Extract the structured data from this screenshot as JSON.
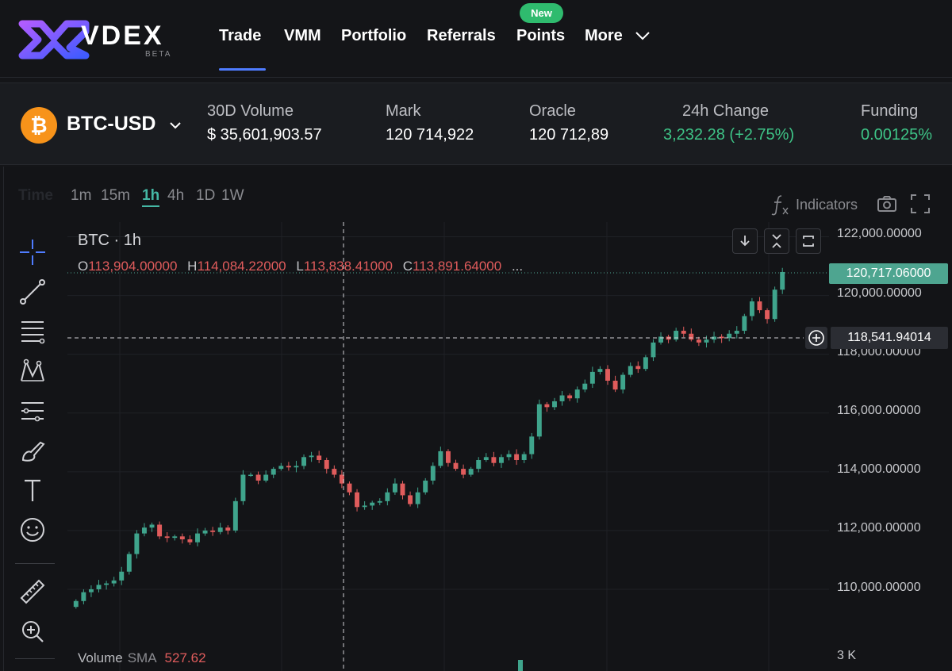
{
  "nav": {
    "brand": "VDEX",
    "brand_sub": "BETA",
    "items": [
      "Trade",
      "VMM",
      "Portfolio",
      "Referrals",
      "Points",
      "More"
    ],
    "active": "Trade",
    "badge": "New",
    "colors": {
      "accent": "#4f7cff",
      "badge": "#2fbb6e"
    }
  },
  "market": {
    "pair": "BTC-USD",
    "stats": [
      {
        "label": "30D Volume",
        "value": "$ 35,601,903.57"
      },
      {
        "label": "Mark",
        "value": "120 714,922"
      },
      {
        "label": "Oracle",
        "value": "120 712,89"
      },
      {
        "label": "24h Change",
        "value": "3,232.28 (+2.75%)"
      },
      {
        "label": "Funding",
        "value": "0.00125%"
      }
    ],
    "colors": {
      "positive": "#3ec487",
      "btc": "#f7931a"
    }
  },
  "chart": {
    "timeframes": [
      "Time",
      "1m",
      "15m",
      "1h",
      "4h",
      "1D",
      "1W"
    ],
    "active_timeframe": "1h",
    "indicators_label": "Indicators",
    "symbol": "BTC · 1h",
    "ohlc": {
      "o_label": "O",
      "o": "113,904.00000",
      "h_label": "H",
      "h": "114,084.22000",
      "l_label": "L",
      "l": "113,838.41000",
      "c_label": "C",
      "c": "113,891.64000",
      "more": "..."
    },
    "volume": {
      "label": "Volume",
      "sma_label": "SMA",
      "sma": "527.62"
    },
    "price_axis": [
      "122,000.00000",
      "120,000.00000",
      "118,000.00000",
      "116,000.00000",
      "114,000.00000",
      "112,000.00000",
      "110,000.00000"
    ],
    "last_price": "120,717.06000",
    "crosshair_price": "118,541.94014",
    "volume_axis": "3 K",
    "tools": [
      "crosshair-icon",
      "trend-line-icon",
      "fib-icon",
      "pattern-icon",
      "forecast-icon",
      "brush-icon",
      "text-icon",
      "emoji-icon",
      "ruler-icon",
      "zoom-in-icon"
    ],
    "colors": {
      "up": "#3fa48c",
      "down": "#e05c5c"
    }
  },
  "chart_data": {
    "type": "candlestick",
    "title": "BTC · 1h",
    "ylim": [
      109000,
      122500
    ],
    "y_ticks": [
      110000,
      112000,
      114000,
      116000,
      118000,
      120000,
      122000
    ],
    "grid": true,
    "close_path": [
      109600,
      109900,
      110000,
      110150,
      110200,
      110300,
      110600,
      111200,
      111900,
      112100,
      112200,
      111800,
      111750,
      111800,
      111700,
      111600,
      111900,
      112000,
      111950,
      112100,
      112000,
      113000,
      113900,
      113900,
      113700,
      113900,
      114100,
      114200,
      114150,
      114200,
      114500,
      114550,
      114400,
      114100,
      113900,
      113600,
      113300,
      112800,
      112850,
      112950,
      113000,
      113300,
      113600,
      113200,
      112900,
      113300,
      113700,
      114200,
      114700,
      114300,
      114100,
      113900,
      114100,
      114400,
      114500,
      114300,
      114500,
      114600,
      114400,
      114600,
      115200,
      116300,
      116200,
      116400,
      116600,
      116500,
      116800,
      117000,
      117400,
      117500,
      117100,
      116800,
      117300,
      117600,
      117500,
      117900,
      118400,
      118600,
      118500,
      118800,
      118700,
      118500,
      118400,
      118500,
      118600,
      118550,
      118700,
      118800,
      119300,
      119800,
      119500,
      119200,
      120200,
      120800
    ]
  }
}
